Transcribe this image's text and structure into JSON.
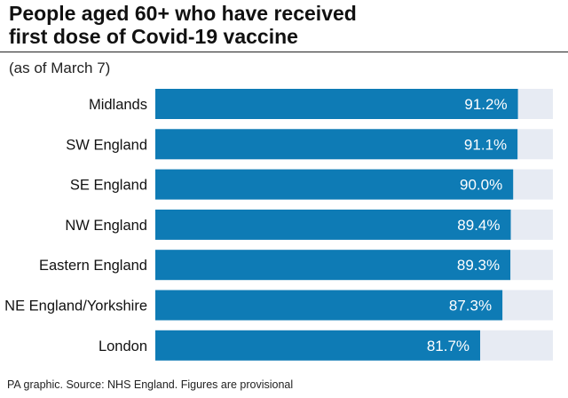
{
  "header": {
    "title_line1": "People aged 60+ who have received",
    "title_line2": "first dose of Covid-19 vaccine",
    "subtitle": "(as of March 7)"
  },
  "footer": {
    "source": "PA graphic. Source: NHS England. Figures are provisional"
  },
  "colors": {
    "bar": "#0e7bb5",
    "track": "#e7ebf3",
    "label_text": "#ffffff"
  },
  "chart_data": {
    "type": "bar",
    "orientation": "horizontal",
    "title": "People aged 60+ who have received first dose of Covid-19 vaccine",
    "subtitle": "(as of March 7)",
    "categories": [
      "Midlands",
      "SW England",
      "SE England",
      "NW England",
      "Eastern England",
      "NE England/Yorkshire",
      "London"
    ],
    "values": [
      91.2,
      91.1,
      90.0,
      89.4,
      89.3,
      87.3,
      81.7
    ],
    "value_labels": [
      "91.2%",
      "91.1%",
      "90.0%",
      "89.4%",
      "89.3%",
      "87.3%",
      "81.7%"
    ],
    "xlim": [
      0,
      100
    ],
    "unit": "%",
    "grid": false,
    "legend": "none"
  }
}
